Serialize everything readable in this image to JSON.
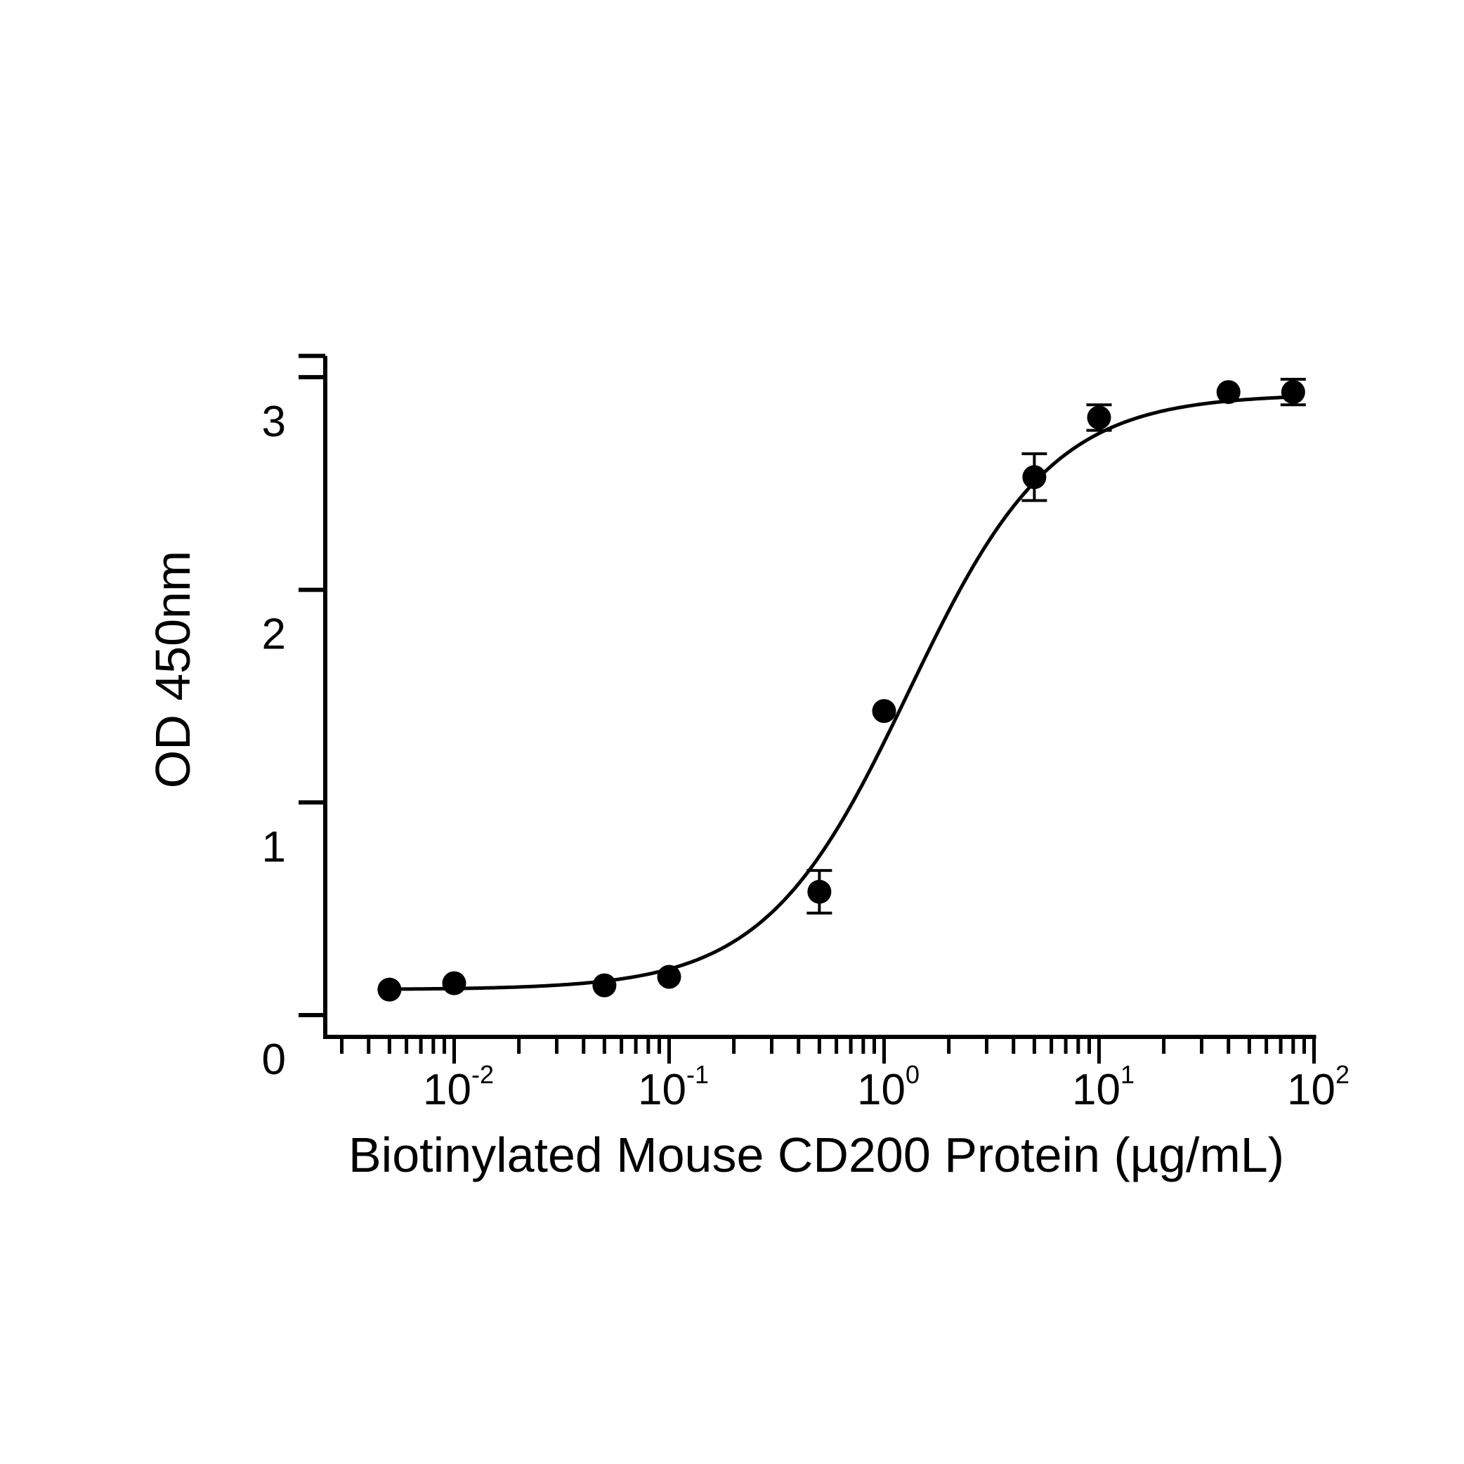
{
  "chart_data": {
    "type": "scatter",
    "xlabel": "Biotinylated Mouse CD200 Protein (µg/mL)",
    "ylabel": "OD 450nm",
    "x_scale": "log",
    "xlim": [
      0.0025,
      100
    ],
    "ylim": [
      -0.1,
      3.1
    ],
    "x_ticks": [
      {
        "value": 0.01,
        "base": "10",
        "exp": "-2"
      },
      {
        "value": 0.1,
        "base": "10",
        "exp": "-1"
      },
      {
        "value": 1,
        "base": "10",
        "exp": "0"
      },
      {
        "value": 10,
        "base": "10",
        "exp": "1"
      },
      {
        "value": 100,
        "base": "10",
        "exp": "2"
      }
    ],
    "y_ticks": [
      {
        "value": 0,
        "label": "0"
      },
      {
        "value": 1,
        "label": "1"
      },
      {
        "value": 2,
        "label": "2"
      },
      {
        "value": 3,
        "label": "3"
      }
    ],
    "grid": false,
    "points": [
      {
        "x": 0.005,
        "y": 0.12,
        "err": 0.0
      },
      {
        "x": 0.01,
        "y": 0.15,
        "err": 0.0
      },
      {
        "x": 0.05,
        "y": 0.14,
        "err": 0.0
      },
      {
        "x": 0.1,
        "y": 0.18,
        "err": 0.0
      },
      {
        "x": 0.5,
        "y": 0.58,
        "err": 0.1
      },
      {
        "x": 1,
        "y": 1.43,
        "err": 0.0
      },
      {
        "x": 5,
        "y": 2.53,
        "err": 0.11
      },
      {
        "x": 10,
        "y": 2.81,
        "err": 0.06
      },
      {
        "x": 40,
        "y": 2.93,
        "err": 0.0
      },
      {
        "x": 80,
        "y": 2.93,
        "err": 0.06
      }
    ],
    "fit": {
      "model": "4PL",
      "bottom": 0.12,
      "top": 2.92,
      "ec50": 1.3,
      "hill": 1.3
    },
    "colors": {
      "marker": "#000000",
      "line": "#000000",
      "background": "#ffffff"
    }
  }
}
